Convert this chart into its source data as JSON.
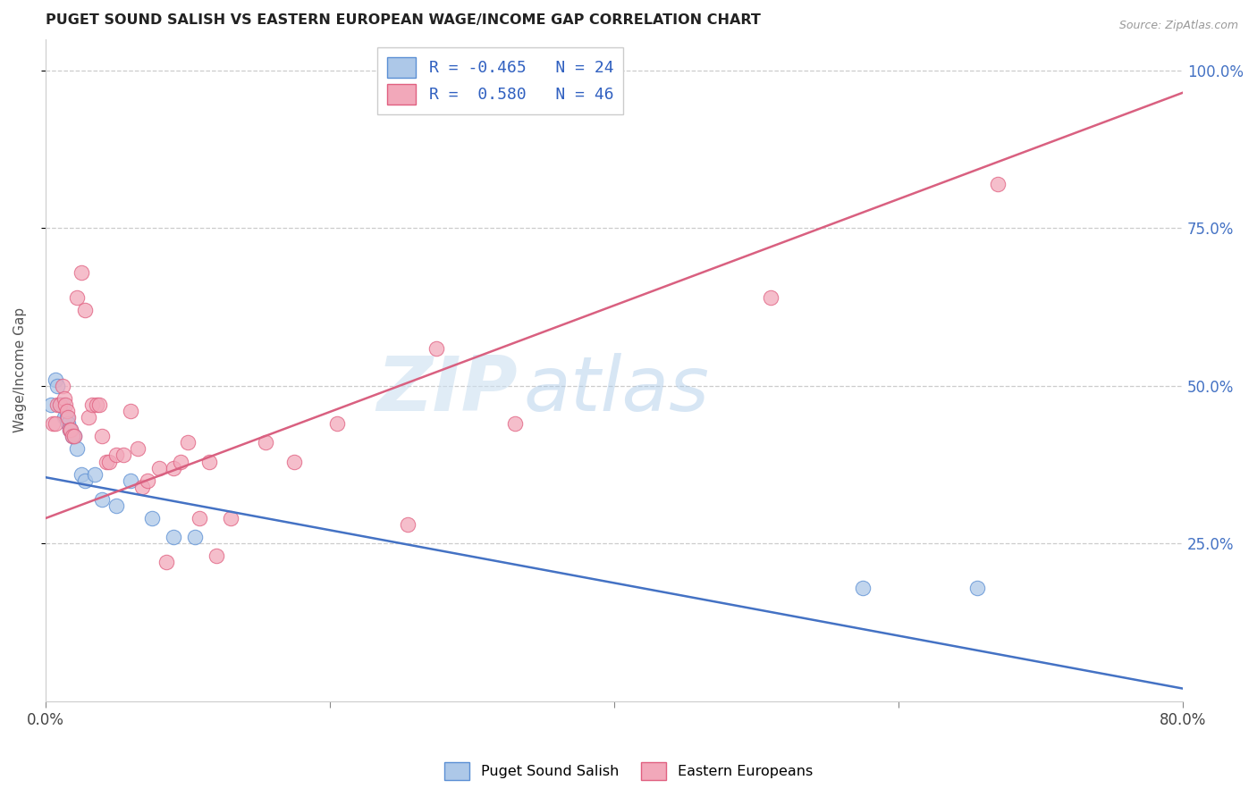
{
  "title": "PUGET SOUND SALISH VS EASTERN EUROPEAN WAGE/INCOME GAP CORRELATION CHART",
  "source": "Source: ZipAtlas.com",
  "ylabel": "Wage/Income Gap",
  "blue_R": -0.465,
  "blue_N": 24,
  "pink_R": 0.58,
  "pink_N": 46,
  "blue_label": "Puget Sound Salish",
  "pink_label": "Eastern Europeans",
  "blue_color": "#adc8e8",
  "pink_color": "#f2a8ba",
  "blue_edge_color": "#5b8fd4",
  "pink_edge_color": "#e06080",
  "blue_line_color": "#4472c4",
  "pink_line_color": "#d96080",
  "xlim": [
    0.0,
    0.8
  ],
  "ylim": [
    0.0,
    1.05
  ],
  "blue_line": [
    [
      0.0,
      0.355
    ],
    [
      0.8,
      0.02
    ]
  ],
  "pink_line": [
    [
      0.0,
      0.29
    ],
    [
      0.8,
      0.965
    ]
  ],
  "blue_scatter": [
    [
      0.004,
      0.47
    ],
    [
      0.007,
      0.51
    ],
    [
      0.008,
      0.5
    ],
    [
      0.01,
      0.47
    ],
    [
      0.012,
      0.47
    ],
    [
      0.013,
      0.45
    ],
    [
      0.015,
      0.45
    ],
    [
      0.016,
      0.44
    ],
    [
      0.017,
      0.43
    ],
    [
      0.018,
      0.43
    ],
    [
      0.019,
      0.42
    ],
    [
      0.02,
      0.42
    ],
    [
      0.022,
      0.4
    ],
    [
      0.025,
      0.36
    ],
    [
      0.028,
      0.35
    ],
    [
      0.035,
      0.36
    ],
    [
      0.04,
      0.32
    ],
    [
      0.05,
      0.31
    ],
    [
      0.06,
      0.35
    ],
    [
      0.075,
      0.29
    ],
    [
      0.09,
      0.26
    ],
    [
      0.105,
      0.26
    ],
    [
      0.575,
      0.18
    ],
    [
      0.655,
      0.18
    ]
  ],
  "pink_scatter": [
    [
      0.005,
      0.44
    ],
    [
      0.007,
      0.44
    ],
    [
      0.008,
      0.47
    ],
    [
      0.01,
      0.47
    ],
    [
      0.012,
      0.5
    ],
    [
      0.013,
      0.48
    ],
    [
      0.014,
      0.47
    ],
    [
      0.015,
      0.46
    ],
    [
      0.016,
      0.45
    ],
    [
      0.017,
      0.43
    ],
    [
      0.018,
      0.43
    ],
    [
      0.019,
      0.42
    ],
    [
      0.02,
      0.42
    ],
    [
      0.022,
      0.64
    ],
    [
      0.025,
      0.68
    ],
    [
      0.028,
      0.62
    ],
    [
      0.03,
      0.45
    ],
    [
      0.033,
      0.47
    ],
    [
      0.036,
      0.47
    ],
    [
      0.038,
      0.47
    ],
    [
      0.04,
      0.42
    ],
    [
      0.043,
      0.38
    ],
    [
      0.045,
      0.38
    ],
    [
      0.05,
      0.39
    ],
    [
      0.055,
      0.39
    ],
    [
      0.06,
      0.46
    ],
    [
      0.065,
      0.4
    ],
    [
      0.068,
      0.34
    ],
    [
      0.072,
      0.35
    ],
    [
      0.08,
      0.37
    ],
    [
      0.085,
      0.22
    ],
    [
      0.09,
      0.37
    ],
    [
      0.095,
      0.38
    ],
    [
      0.1,
      0.41
    ],
    [
      0.108,
      0.29
    ],
    [
      0.115,
      0.38
    ],
    [
      0.12,
      0.23
    ],
    [
      0.13,
      0.29
    ],
    [
      0.155,
      0.41
    ],
    [
      0.175,
      0.38
    ],
    [
      0.205,
      0.44
    ],
    [
      0.255,
      0.28
    ],
    [
      0.275,
      0.56
    ],
    [
      0.33,
      0.44
    ],
    [
      0.51,
      0.64
    ],
    [
      0.67,
      0.82
    ]
  ],
  "watermark_zip": "ZIP",
  "watermark_atlas": "atlas",
  "background_color": "#ffffff",
  "grid_color": "#cccccc",
  "grid_style": "--",
  "grid_yticks": [
    0.25,
    0.5,
    0.75,
    1.0
  ]
}
